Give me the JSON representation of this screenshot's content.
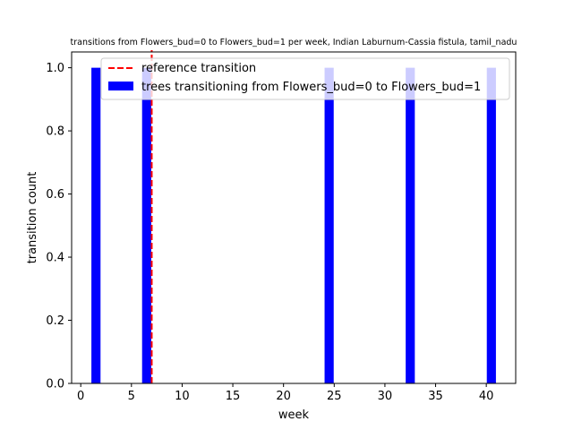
{
  "chart_data": {
    "type": "bar",
    "title": "transitions from Flowers_bud=0 to Flowers_bud=1 per week, Indian Laburnum-Cassia fistula, tamil_nadu",
    "xlabel": "week",
    "ylabel": "transition count",
    "xlim": [
      -0.9,
      42.9
    ],
    "ylim": [
      0,
      1.05
    ],
    "x_ticks": [
      0,
      5,
      10,
      15,
      20,
      25,
      30,
      35,
      40
    ],
    "y_ticks": [
      0.0,
      0.2,
      0.4,
      0.6,
      0.8,
      1.0
    ],
    "bar_width": 0.9,
    "series": [
      {
        "name": "trees transitioning from Flowers_bud=0 to Flowers_bud=1",
        "color": "#0000ff",
        "x": [
          1.5,
          6.5,
          24.5,
          32.5,
          40.5
        ],
        "values": [
          1,
          1,
          1,
          1,
          1
        ]
      }
    ],
    "reference_line": {
      "name": "reference transition",
      "x": 7,
      "color": "#ff0000",
      "style": "dashed"
    },
    "legend_position": "top-right",
    "grid": false
  }
}
